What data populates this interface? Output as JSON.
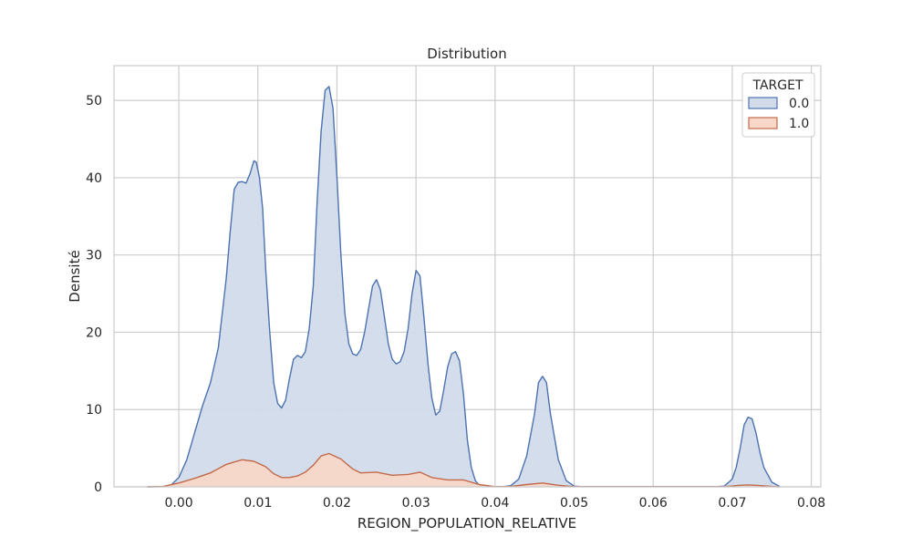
{
  "chart_data": {
    "type": "area",
    "title": "Distribution",
    "xlabel": "REGION_POPULATION_RELATIVE",
    "ylabel": "Densité",
    "xlim": [
      -0.0082,
      0.0812
    ],
    "ylim": [
      0,
      54.5
    ],
    "x_ticks": [
      "0.00",
      "0.01",
      "0.02",
      "0.03",
      "0.04",
      "0.05",
      "0.06",
      "0.07",
      "0.08"
    ],
    "x_tick_values": [
      0.0,
      0.01,
      0.02,
      0.03,
      0.04,
      0.05,
      0.06,
      0.07,
      0.08
    ],
    "y_ticks": [
      "0",
      "10",
      "20",
      "30",
      "40",
      "50"
    ],
    "y_tick_values": [
      0,
      10,
      20,
      30,
      40,
      50
    ],
    "grid": true,
    "legend": {
      "title": "TARGET",
      "position": "top-right"
    },
    "series": [
      {
        "name": "0.0",
        "line_color": "#4c72b0",
        "fill_color": "#d1dbea",
        "points": [
          [
            -0.004,
            0
          ],
          [
            -0.002,
            0.02
          ],
          [
            -0.001,
            0.2
          ],
          [
            0.0,
            1.2
          ],
          [
            0.001,
            3.5
          ],
          [
            0.002,
            7.0
          ],
          [
            0.003,
            10.5
          ],
          [
            0.004,
            13.5
          ],
          [
            0.005,
            18.0
          ],
          [
            0.006,
            27.0
          ],
          [
            0.0065,
            33.0
          ],
          [
            0.007,
            38.5
          ],
          [
            0.0075,
            39.4
          ],
          [
            0.008,
            39.5
          ],
          [
            0.0085,
            39.3
          ],
          [
            0.009,
            40.5
          ],
          [
            0.0095,
            42.2
          ],
          [
            0.0098,
            42.0
          ],
          [
            0.0102,
            40.0
          ],
          [
            0.0106,
            36.0
          ],
          [
            0.011,
            28.0
          ],
          [
            0.0115,
            20.0
          ],
          [
            0.012,
            13.5
          ],
          [
            0.0125,
            10.8
          ],
          [
            0.013,
            10.2
          ],
          [
            0.0135,
            11.2
          ],
          [
            0.014,
            14.0
          ],
          [
            0.0145,
            16.5
          ],
          [
            0.015,
            17.0
          ],
          [
            0.0155,
            16.7
          ],
          [
            0.016,
            17.5
          ],
          [
            0.0165,
            20.5
          ],
          [
            0.017,
            26.0
          ],
          [
            0.0175,
            37.0
          ],
          [
            0.018,
            46.0
          ],
          [
            0.0185,
            51.3
          ],
          [
            0.019,
            51.8
          ],
          [
            0.0195,
            49.0
          ],
          [
            0.02,
            40.0
          ],
          [
            0.0205,
            30.0
          ],
          [
            0.021,
            22.5
          ],
          [
            0.0215,
            18.5
          ],
          [
            0.022,
            17.2
          ],
          [
            0.0225,
            17.0
          ],
          [
            0.023,
            17.8
          ],
          [
            0.0235,
            20.0
          ],
          [
            0.024,
            23.0
          ],
          [
            0.0245,
            26.0
          ],
          [
            0.025,
            26.8
          ],
          [
            0.0255,
            25.5
          ],
          [
            0.026,
            22.0
          ],
          [
            0.0265,
            18.5
          ],
          [
            0.027,
            16.5
          ],
          [
            0.0275,
            15.9
          ],
          [
            0.028,
            16.2
          ],
          [
            0.0285,
            17.5
          ],
          [
            0.029,
            20.5
          ],
          [
            0.0295,
            25.0
          ],
          [
            0.03,
            28.0
          ],
          [
            0.0305,
            27.3
          ],
          [
            0.031,
            22.0
          ],
          [
            0.0315,
            16.0
          ],
          [
            0.032,
            11.5
          ],
          [
            0.0325,
            9.3
          ],
          [
            0.033,
            9.8
          ],
          [
            0.0335,
            12.5
          ],
          [
            0.034,
            15.5
          ],
          [
            0.0345,
            17.2
          ],
          [
            0.035,
            17.5
          ],
          [
            0.0355,
            16.3
          ],
          [
            0.036,
            12.0
          ],
          [
            0.0365,
            6.0
          ],
          [
            0.037,
            2.5
          ],
          [
            0.0375,
            0.8
          ],
          [
            0.038,
            0.2
          ],
          [
            0.039,
            0.02
          ],
          [
            0.041,
            0.02
          ],
          [
            0.042,
            0.15
          ],
          [
            0.043,
            1.0
          ],
          [
            0.044,
            4.0
          ],
          [
            0.045,
            9.5
          ],
          [
            0.0455,
            13.5
          ],
          [
            0.046,
            14.3
          ],
          [
            0.0465,
            13.5
          ],
          [
            0.047,
            9.5
          ],
          [
            0.048,
            3.5
          ],
          [
            0.049,
            0.8
          ],
          [
            0.05,
            0.1
          ],
          [
            0.051,
            0.02
          ],
          [
            0.068,
            0.02
          ],
          [
            0.069,
            0.1
          ],
          [
            0.07,
            1.0
          ],
          [
            0.0705,
            2.5
          ],
          [
            0.071,
            5.0
          ],
          [
            0.0715,
            8.0
          ],
          [
            0.072,
            9.0
          ],
          [
            0.0725,
            8.8
          ],
          [
            0.073,
            7.0
          ],
          [
            0.0735,
            4.5
          ],
          [
            0.074,
            2.5
          ],
          [
            0.075,
            0.6
          ],
          [
            0.076,
            0.05
          ]
        ]
      },
      {
        "name": "1.0",
        "line_color": "#c26a4a",
        "fill_color": "#f8d7c9",
        "points": [
          [
            -0.004,
            0
          ],
          [
            -0.002,
            0.05
          ],
          [
            0.0,
            0.5
          ],
          [
            0.002,
            1.1
          ],
          [
            0.004,
            1.8
          ],
          [
            0.006,
            2.9
          ],
          [
            0.008,
            3.5
          ],
          [
            0.0095,
            3.3
          ],
          [
            0.011,
            2.6
          ],
          [
            0.012,
            1.7
          ],
          [
            0.013,
            1.2
          ],
          [
            0.014,
            1.2
          ],
          [
            0.015,
            1.4
          ],
          [
            0.016,
            1.9
          ],
          [
            0.017,
            2.8
          ],
          [
            0.018,
            4.0
          ],
          [
            0.019,
            4.3
          ],
          [
            0.0205,
            3.6
          ],
          [
            0.022,
            2.3
          ],
          [
            0.023,
            1.8
          ],
          [
            0.025,
            1.9
          ],
          [
            0.027,
            1.5
          ],
          [
            0.029,
            1.6
          ],
          [
            0.0305,
            1.9
          ],
          [
            0.032,
            1.2
          ],
          [
            0.034,
            0.9
          ],
          [
            0.036,
            0.9
          ],
          [
            0.038,
            0.3
          ],
          [
            0.04,
            0.02
          ],
          [
            0.042,
            0.05
          ],
          [
            0.044,
            0.3
          ],
          [
            0.046,
            0.5
          ],
          [
            0.048,
            0.2
          ],
          [
            0.05,
            0.02
          ],
          [
            0.069,
            0.02
          ],
          [
            0.071,
            0.2
          ],
          [
            0.072,
            0.25
          ],
          [
            0.073,
            0.2
          ],
          [
            0.075,
            0.05
          ],
          [
            0.076,
            0
          ]
        ]
      }
    ]
  }
}
